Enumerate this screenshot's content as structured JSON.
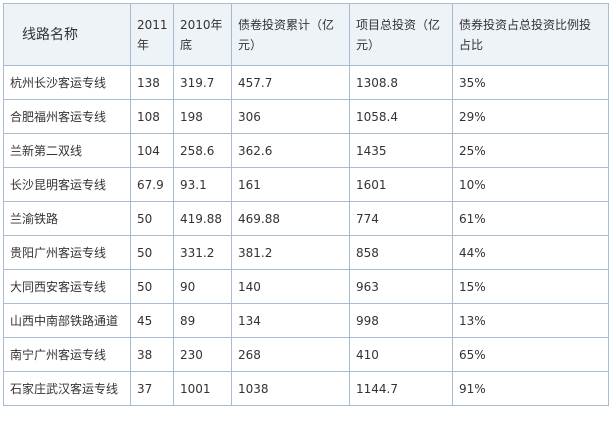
{
  "table": {
    "header": [
      "线路名称",
      "2011年",
      "2010年底",
      "债卷投资累计（亿元）",
      "项目总投资（亿元）",
      "债券投资占总投资比例投占比"
    ],
    "rows": [
      [
        "杭州长沙客运专线",
        "138",
        "319.7",
        "457.7",
        "1308.8",
        "35%"
      ],
      [
        "合肥福州客运专线",
        "108",
        "198",
        "306",
        "1058.4",
        "29%"
      ],
      [
        "兰新第二双线",
        "104",
        "258.6",
        "362.6",
        "1435",
        "25%"
      ],
      [
        "长沙昆明客运专线",
        "67.9",
        "93.1",
        "161",
        "1601",
        "10%"
      ],
      [
        "兰渝铁路",
        "50",
        "419.88",
        "469.88",
        "774",
        "61%"
      ],
      [
        "贵阳广州客运专线",
        "50",
        "331.2",
        "381.2",
        "858",
        "44%"
      ],
      [
        "大同西安客运专线",
        "50",
        "90",
        "140",
        "963",
        "15%"
      ],
      [
        "山西中南部铁路通道",
        "45",
        "89",
        "134",
        "998",
        "13%"
      ],
      [
        "南宁广州客运专线",
        "38",
        "230",
        "268",
        "410",
        "65%"
      ],
      [
        "石家庄武汉客运专线",
        "37",
        "1001",
        "1038",
        "1144.7",
        "91%"
      ]
    ]
  }
}
